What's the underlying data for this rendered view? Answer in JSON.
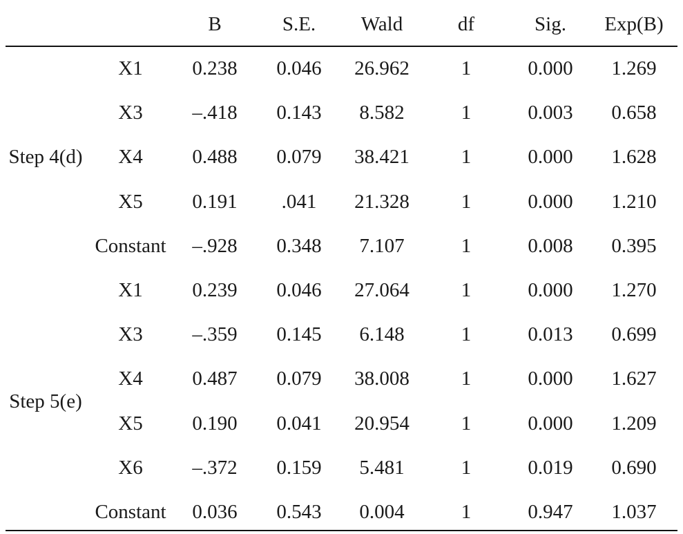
{
  "table": {
    "headers": [
      "",
      "",
      "B",
      "S.E.",
      "Wald",
      "df",
      "Sig.",
      "Exp(B)"
    ],
    "groups": [
      {
        "step": "Step 4(d)",
        "rows": [
          [
            "X1",
            "0.238",
            "0.046",
            "26.962",
            "1",
            "0.000",
            "1.269"
          ],
          [
            "X3",
            "–.418",
            "0.143",
            "8.582",
            "1",
            "0.003",
            "0.658"
          ],
          [
            "X4",
            "0.488",
            "0.079",
            "38.421",
            "1",
            "0.000",
            "1.628"
          ],
          [
            "X5",
            "0.191",
            ".041",
            "21.328",
            "1",
            "0.000",
            "1.210"
          ],
          [
            "Constant",
            "–.928",
            "0.348",
            "7.107",
            "1",
            "0.008",
            "0.395"
          ]
        ]
      },
      {
        "step": "Step 5(e)",
        "rows": [
          [
            "X1",
            "0.239",
            "0.046",
            "27.064",
            "1",
            "0.000",
            "1.270"
          ],
          [
            "X3",
            "–.359",
            "0.145",
            "6.148",
            "1",
            "0.013",
            "0.699"
          ],
          [
            "X4",
            "0.487",
            "0.079",
            "38.008",
            "1",
            "0.000",
            "1.627"
          ],
          [
            "X5",
            "0.190",
            "0.041",
            "20.954",
            "1",
            "0.000",
            "1.209"
          ],
          [
            "X6",
            "–.372",
            "0.159",
            "5.481",
            "1",
            "0.019",
            "0.690"
          ],
          [
            "Constant",
            "0.036",
            "0.543",
            "0.004",
            "1",
            "0.947",
            "1.037"
          ]
        ]
      }
    ]
  }
}
